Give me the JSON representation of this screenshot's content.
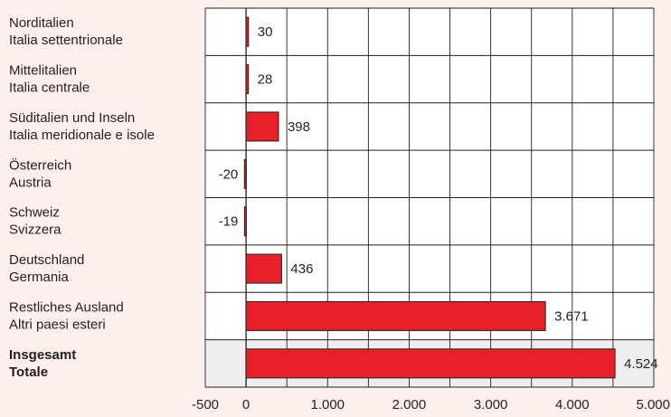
{
  "chart_data": {
    "type": "bar",
    "orientation": "horizontal",
    "categories": [
      {
        "line1": "Norditalien",
        "line2": "Italia settentrionale",
        "bold": false
      },
      {
        "line1": "Mittelitalien",
        "line2": "Italia centrale",
        "bold": false
      },
      {
        "line1": "Süditalien und Inseln",
        "line2": "Italia meridionale e isole",
        "bold": false
      },
      {
        "line1": "Österreich",
        "line2": "Austria",
        "bold": false
      },
      {
        "line1": "Schweiz",
        "line2": "Svizzera",
        "bold": false
      },
      {
        "line1": "Deutschland",
        "line2": "Germania",
        "bold": false
      },
      {
        "line1": "Restliches Ausland",
        "line2": "Altri paesi esteri",
        "bold": false
      },
      {
        "line1": "Insgesamt",
        "line2": "Totale",
        "bold": true
      }
    ],
    "values": [
      30,
      28,
      398,
      -20,
      -19,
      436,
      3671,
      4524
    ],
    "value_labels": [
      "30",
      "28",
      "398",
      "-20",
      "-19",
      "436",
      "3.671",
      "4.524"
    ],
    "xlim": [
      -500,
      5000
    ],
    "ticks": [
      -500,
      0,
      1000,
      2000,
      3000,
      4000,
      5000
    ],
    "tick_labels": [
      "-500",
      "0",
      "1.000",
      "2.000",
      "3.000",
      "4.000",
      "5.000"
    ],
    "grid": true,
    "colors": {
      "bar": "#e8202a",
      "bar_stroke": "#231f20",
      "grid": "#231f20",
      "plot_bg": "#ffffff",
      "total_row_bg": "#efeeee",
      "page_bg": "#fdf0ea"
    }
  }
}
